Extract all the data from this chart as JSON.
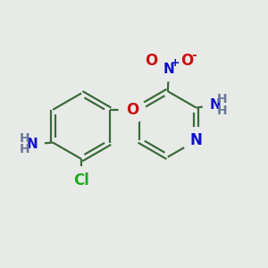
{
  "bg_color": "#e8eae8",
  "bond_color": "#3a6b3a",
  "N_color": "#1010cc",
  "O_color": "#cc1010",
  "Cl_color": "#22aa22",
  "H_color": "#6a7a9a",
  "linewidth": 1.6,
  "figsize": [
    3.0,
    3.0
  ],
  "dpi": 100,
  "xlim": [
    0,
    10
  ],
  "ylim": [
    0,
    10
  ]
}
